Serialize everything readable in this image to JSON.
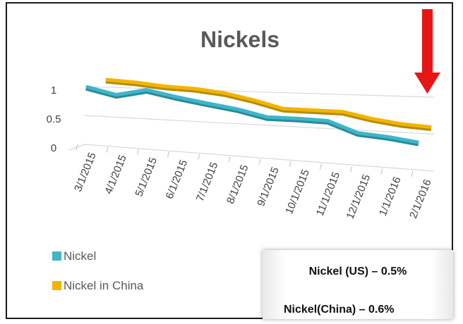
{
  "chart_data": {
    "type": "line",
    "title": "Nickels",
    "categories": [
      "3/1/2015",
      "4/1/2015",
      "5/1/2015",
      "6/1/2015",
      "7/1/2015",
      "8/1/2015",
      "9/1/2015",
      "10/1/2015",
      "11/1/2015",
      "12/1/2015",
      "1/1/2016",
      "2/1/2016"
    ],
    "y_ticks": [
      {
        "value": 0,
        "label": "0"
      },
      {
        "value": 0.5,
        "label": "0.5"
      },
      {
        "value": 1,
        "label": "1"
      }
    ],
    "ylim": [
      0,
      1
    ],
    "series": [
      {
        "name": "Nickel",
        "color": "#3FB6C9",
        "values": [
          1.0,
          0.88,
          0.98,
          0.88,
          0.8,
          0.73,
          0.63,
          0.63,
          0.62,
          0.47,
          0.44,
          0.39
        ]
      },
      {
        "name": "Nickel in China",
        "color": "#F1B400",
        "values": [
          1.0,
          0.97,
          0.92,
          0.9,
          0.85,
          0.76,
          0.65,
          0.65,
          0.65,
          0.57,
          0.52,
          0.5
        ]
      }
    ],
    "legend_position": "bottom-left",
    "grid": true
  },
  "annotations": {
    "note_us": "Nickel (US) – 0.5%",
    "note_china": "Nickel(China) – 0.6%",
    "arrow_color": "#E81515"
  }
}
